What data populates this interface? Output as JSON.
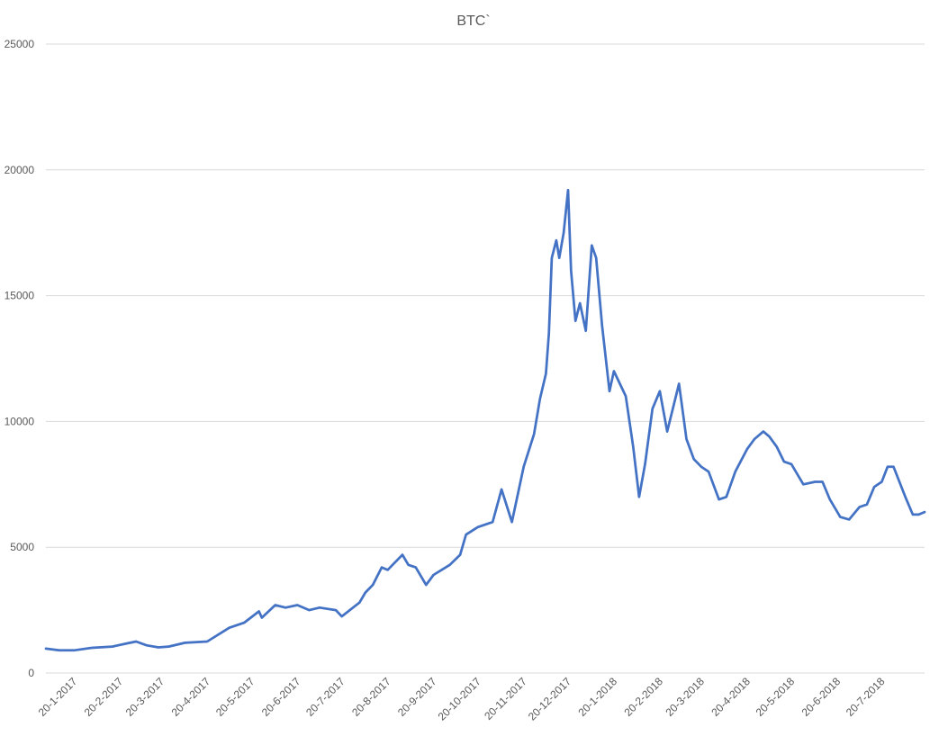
{
  "chart_data": {
    "type": "line",
    "title": "BTC`",
    "xlabel": "",
    "ylabel": "",
    "ylim": [
      0,
      25000
    ],
    "y_ticks": [
      "0",
      "5000",
      "10000",
      "15000",
      "20000",
      "25000"
    ],
    "x_tick_labels": [
      "20-1-2017",
      "20-2-2017",
      "20-3-2017",
      "20-4-2017",
      "20-5-2017",
      "20-6-2017",
      "20-7-2017",
      "20-8-2017",
      "20-9-2017",
      "20-10-2017",
      "20-11-2017",
      "20-12-2017",
      "20-1-2018",
      "20-2-2018",
      "20-3-2018",
      "20-4-2018",
      "20-5-2018",
      "20-6-2018",
      "20-7-2018"
    ],
    "grid": true,
    "series_color": "#4472C4",
    "series": [
      {
        "x": [
          "2017-01-01",
          "2017-01-10",
          "2017-01-20",
          "2017-02-01",
          "2017-02-15",
          "2017-02-25",
          "2017-03-03",
          "2017-03-10",
          "2017-03-18",
          "2017-03-25",
          "2017-04-05",
          "2017-04-20",
          "2017-05-05",
          "2017-05-15",
          "2017-05-25",
          "2017-05-27",
          "2017-06-05",
          "2017-06-12",
          "2017-06-20",
          "2017-06-28",
          "2017-07-05",
          "2017-07-16",
          "2017-07-20",
          "2017-08-01",
          "2017-08-05",
          "2017-08-10",
          "2017-08-16",
          "2017-08-20",
          "2017-08-30",
          "2017-09-03",
          "2017-09-08",
          "2017-09-15",
          "2017-09-20",
          "2017-10-01",
          "2017-10-08",
          "2017-10-12",
          "2017-10-20",
          "2017-10-30",
          "2017-11-05",
          "2017-11-12",
          "2017-11-20",
          "2017-11-27",
          "2017-12-01",
          "2017-12-05",
          "2017-12-07",
          "2017-12-09",
          "2017-12-12",
          "2017-12-14",
          "2017-12-17",
          "2017-12-20",
          "2017-12-22",
          "2017-12-25",
          "2017-12-28",
          "2018-01-01",
          "2018-01-05",
          "2018-01-08",
          "2018-01-12",
          "2018-01-17",
          "2018-01-20",
          "2018-01-28",
          "2018-02-02",
          "2018-02-06",
          "2018-02-10",
          "2018-02-15",
          "2018-02-20",
          "2018-02-25",
          "2018-03-05",
          "2018-03-10",
          "2018-03-15",
          "2018-03-20",
          "2018-03-25",
          "2018-04-01",
          "2018-04-06",
          "2018-04-12",
          "2018-04-20",
          "2018-04-25",
          "2018-05-01",
          "2018-05-05",
          "2018-05-10",
          "2018-05-15",
          "2018-05-20",
          "2018-05-28",
          "2018-06-05",
          "2018-06-10",
          "2018-06-15",
          "2018-06-22",
          "2018-06-28",
          "2018-07-05",
          "2018-07-10",
          "2018-07-15",
          "2018-07-20",
          "2018-07-24",
          "2018-07-28",
          "2018-08-05",
          "2018-08-10",
          "2018-08-14",
          "2018-08-18"
        ],
        "values": [
          970,
          900,
          900,
          1000,
          1050,
          1180,
          1250,
          1100,
          1020,
          1050,
          1200,
          1250,
          1800,
          2000,
          2450,
          2200,
          2700,
          2600,
          2700,
          2500,
          2600,
          2500,
          2250,
          2800,
          3200,
          3500,
          4200,
          4100,
          4700,
          4300,
          4200,
          3500,
          3900,
          4300,
          4700,
          5500,
          5800,
          6000,
          7300,
          6000,
          8200,
          9500,
          10900,
          11900,
          13500,
          16500,
          17200,
          16500,
          17500,
          19200,
          16000,
          14000,
          14700,
          13600,
          17000,
          16500,
          13800,
          11200,
          12000,
          11000,
          9000,
          7000,
          8300,
          10500,
          11200,
          9600,
          11500,
          9300,
          8500,
          8200,
          8000,
          6900,
          7000,
          8000,
          8900,
          9300,
          9600,
          9400,
          9000,
          8400,
          8300,
          7500,
          7600,
          7600,
          6900,
          6200,
          6100,
          6600,
          6700,
          7400,
          7600,
          8200,
          8200,
          7000,
          6300,
          6300,
          6400
        ]
      }
    ]
  }
}
